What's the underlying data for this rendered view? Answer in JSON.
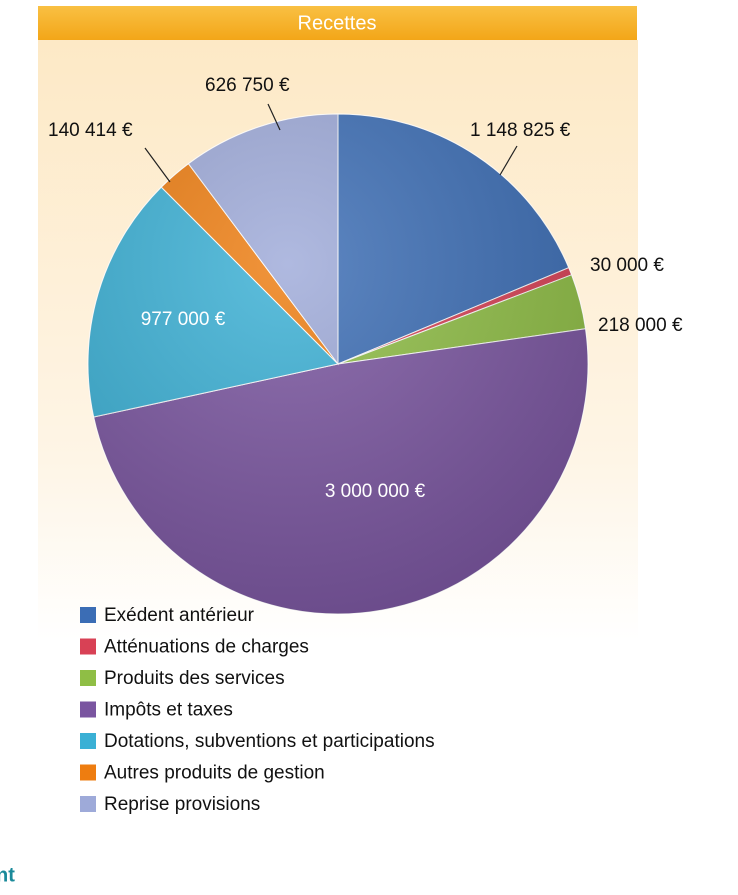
{
  "chart_data": {
    "type": "pie",
    "title": "Recettes",
    "categories": [
      "Exédent antérieur",
      "Atténuations de charges",
      "Produits des services",
      "Impôts et taxes",
      "Dotations, subventions et participations",
      "Autres produits de gestion",
      "Reprise provisions"
    ],
    "values": [
      1148825,
      30000,
      218000,
      3000000,
      977000,
      140414,
      626750
    ],
    "value_labels": [
      "1 148 825 €",
      "30 000 €",
      "218 000 €",
      "3 000 000 €",
      "977 000 €",
      "140 414 €",
      "626 750 €"
    ],
    "colors": [
      "#3b6db5",
      "#d84155",
      "#8fbe45",
      "#7a55a0",
      "#3ab0d5",
      "#ee7d10",
      "#9eaad9"
    ],
    "legend": "bottom-left"
  },
  "fragment": "nt"
}
